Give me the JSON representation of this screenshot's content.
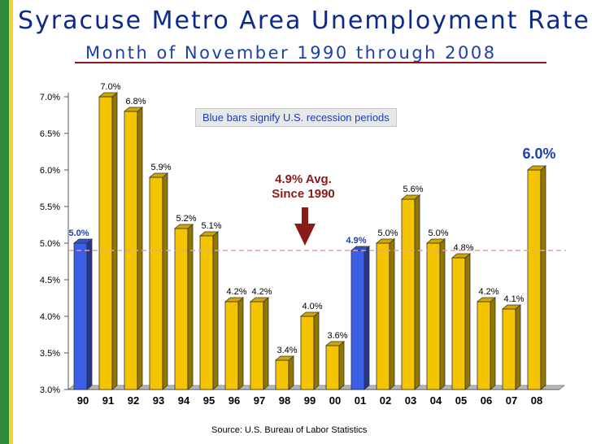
{
  "header": {
    "title": "Syracuse Metro Area Unemployment Rate",
    "subtitle": "Month of November 1990 through 2008"
  },
  "annotations": {
    "recession_note": "Blue bars signify U.S. recession periods",
    "avg_line1": "4.9% Avg.",
    "avg_line2": "Since 1990"
  },
  "footer": {
    "source": "Source:  U.S. Bureau of Labor Statistics"
  },
  "colors": {
    "normal_bar": "#f5c400",
    "recession_bar": "#3a5fe6",
    "average_line": "#e8a0a0",
    "title": "#0b2a8a",
    "avg_text": "#8b1a1a",
    "last_value": "#1a3fb0"
  },
  "chart_data": {
    "type": "bar",
    "categories": [
      "90",
      "91",
      "92",
      "93",
      "94",
      "95",
      "96",
      "97",
      "98",
      "99",
      "00",
      "01",
      "02",
      "03",
      "04",
      "05",
      "06",
      "07",
      "08"
    ],
    "values": [
      5.0,
      7.0,
      6.8,
      5.9,
      5.2,
      5.1,
      4.2,
      4.2,
      3.4,
      4.0,
      3.6,
      4.9,
      5.0,
      5.6,
      5.0,
      4.8,
      4.2,
      4.1,
      6.0
    ],
    "data_labels": [
      "5.0%",
      "7.0%",
      "6.8%",
      "5.9%",
      "5.2%",
      "5.1%",
      "4.2%",
      "4.2%",
      "3.4%",
      "4.0%",
      "3.6%",
      "4.9%",
      "5.0%",
      "5.6%",
      "5.0%",
      "4.8%",
      "4.2%",
      "4.1%",
      "6.0%"
    ],
    "recession": [
      true,
      false,
      false,
      false,
      false,
      false,
      false,
      false,
      false,
      false,
      false,
      true,
      false,
      false,
      false,
      false,
      false,
      false,
      false
    ],
    "average": 4.9,
    "ylim": [
      3.0,
      7.0
    ],
    "yticks": [
      "3.0%",
      "3.5%",
      "4.0%",
      "4.5%",
      "5.0%",
      "5.5%",
      "6.0%",
      "6.5%",
      "7.0%"
    ],
    "grid": false,
    "xlabel": "",
    "ylabel": ""
  }
}
